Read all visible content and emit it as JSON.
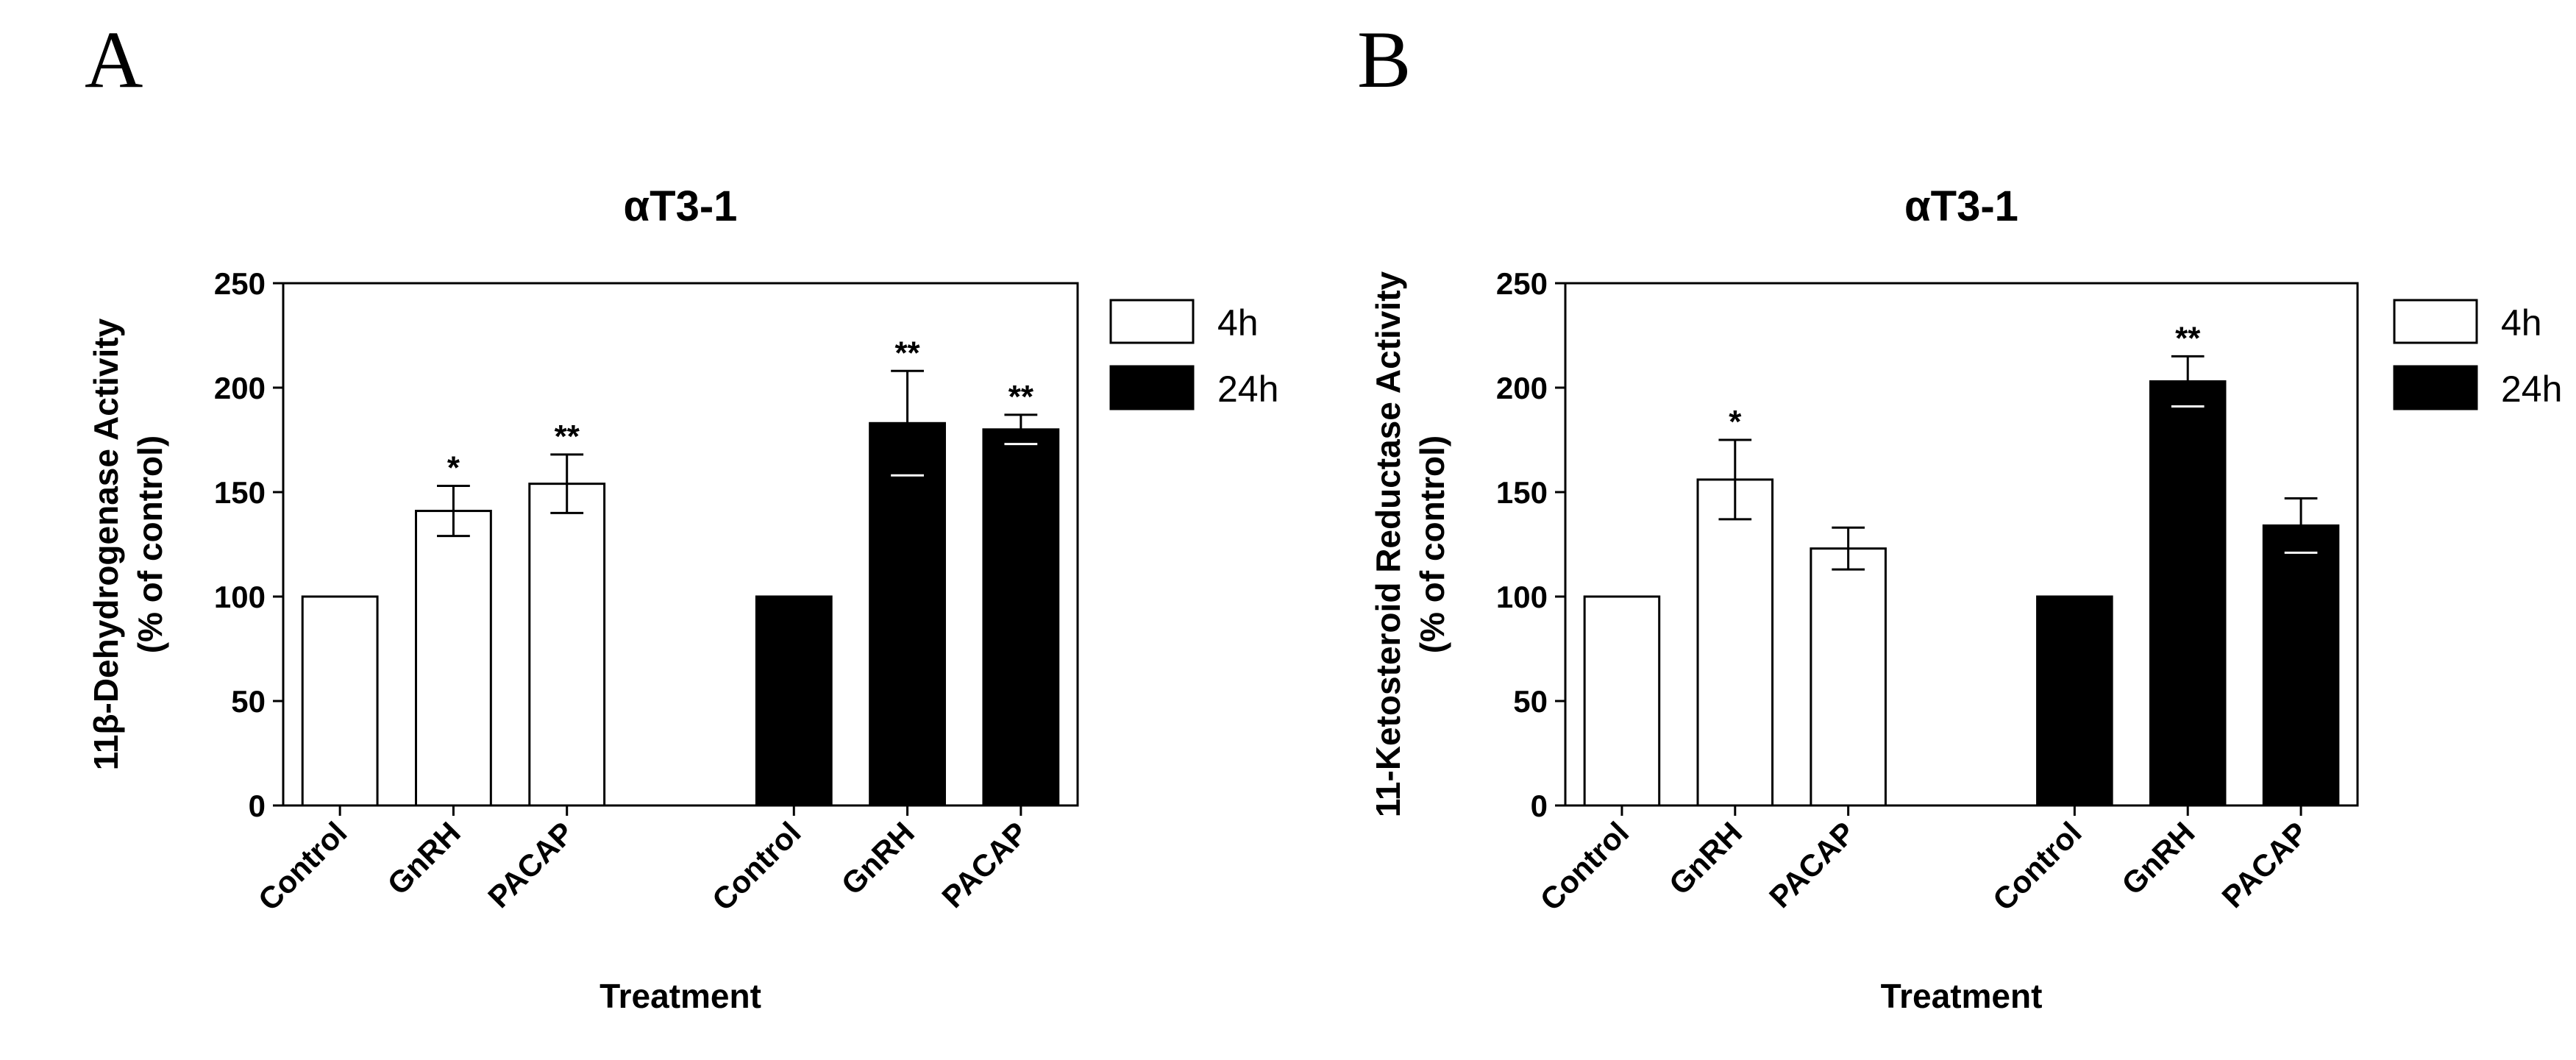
{
  "panels": [
    {
      "letter": "A",
      "chart_data": {
        "type": "bar",
        "title": "αT3-1",
        "xlabel": "Treatment",
        "ylabel_line1": "11β-Dehydrogenase Activity",
        "ylabel_line2": "(% of control)",
        "ylim": [
          0,
          250
        ],
        "yticks": [
          "0",
          "50",
          "100",
          "150",
          "200",
          "250"
        ],
        "ytick_values": [
          0,
          50,
          100,
          150,
          200,
          250
        ],
        "grid": false,
        "legend_placement": "right",
        "series": [
          {
            "name": "4h",
            "fill": "#ffffff",
            "categories": [
              "Control",
              "GnRH",
              "PACAP"
            ],
            "values": [
              100,
              141,
              154
            ],
            "errors": [
              0,
              12,
              14
            ],
            "significance": [
              "",
              "*",
              "**"
            ]
          },
          {
            "name": "24h",
            "fill": "#000000",
            "categories": [
              "Control",
              "GnRH",
              "PACAP"
            ],
            "values": [
              100,
              183,
              180
            ],
            "errors": [
              0,
              25,
              7
            ],
            "significance": [
              "",
              "**",
              "**"
            ]
          }
        ]
      }
    },
    {
      "letter": "B",
      "chart_data": {
        "type": "bar",
        "title": "αT3-1",
        "xlabel": "Treatment",
        "ylabel_line1": "11-Ketosteroid Reductase Activity",
        "ylabel_line2": "(% of control)",
        "ylim": [
          0,
          250
        ],
        "yticks": [
          "0",
          "50",
          "100",
          "150",
          "200",
          "250"
        ],
        "ytick_values": [
          0,
          50,
          100,
          150,
          200,
          250
        ],
        "grid": false,
        "legend_placement": "right",
        "series": [
          {
            "name": "4h",
            "fill": "#ffffff",
            "categories": [
              "Control",
              "GnRH",
              "PACAP"
            ],
            "values": [
              100,
              156,
              123
            ],
            "errors": [
              0,
              19,
              10
            ],
            "significance": [
              "",
              "*",
              ""
            ]
          },
          {
            "name": "24h",
            "fill": "#000000",
            "categories": [
              "Control",
              "GnRH",
              "PACAP"
            ],
            "values": [
              100,
              203,
              134
            ],
            "errors": [
              0,
              12,
              13
            ],
            "significance": [
              "",
              "**",
              ""
            ]
          }
        ]
      }
    }
  ]
}
